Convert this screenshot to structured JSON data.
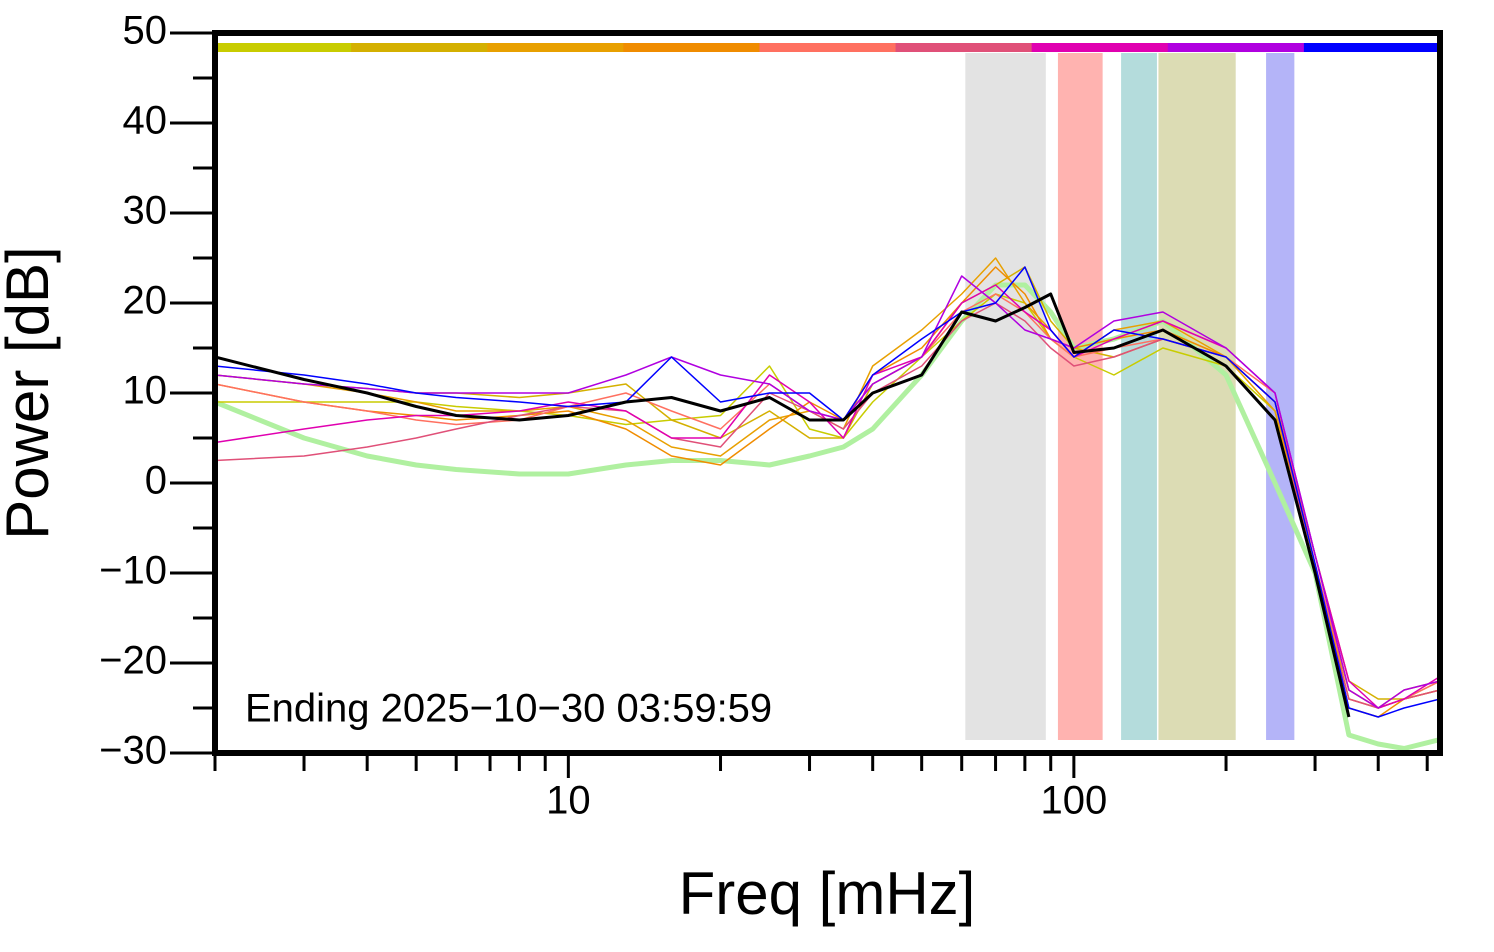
{
  "chart_data": {
    "type": "line",
    "xlabel": "Freq [mHz]",
    "ylabel": "Power [dB]",
    "annotation": "Ending 2025−10−30 03:59:59",
    "xscale": "log",
    "xlim": [
      2,
      530
    ],
    "ylim": [
      -30,
      50
    ],
    "xticks": [
      10,
      100
    ],
    "xminorticks": [
      2,
      3,
      4,
      5,
      6,
      7,
      8,
      9,
      20,
      30,
      40,
      50,
      60,
      70,
      80,
      90,
      200,
      300,
      400,
      500
    ],
    "yticks": [
      {
        "value": -30,
        "label": "−30"
      },
      {
        "value": -20,
        "label": "−20"
      },
      {
        "value": -10,
        "label": "−10"
      },
      0,
      10,
      20,
      30,
      40,
      50
    ],
    "yminorticks": [
      -25,
      -15,
      -5,
      5,
      15,
      25,
      35,
      45
    ],
    "bands": [
      {
        "x0": 61,
        "x1": 88,
        "color": "#e3e3e3"
      },
      {
        "x0": 93,
        "x1": 114,
        "color": "#ffb3b0"
      },
      {
        "x0": 124,
        "x1": 146,
        "color": "#b4dcdc"
      },
      {
        "x0": 147,
        "x1": 209,
        "color": "#dcdcb4"
      },
      {
        "x0": 240,
        "x1": 273,
        "color": "#b4b4f8"
      }
    ],
    "x": [
      2,
      3,
      4,
      5,
      6,
      8,
      10,
      13,
      16,
      20,
      25,
      30,
      35,
      40,
      50,
      60,
      70,
      80,
      90,
      100,
      120,
      150,
      200,
      250,
      300,
      350,
      400,
      450,
      530
    ],
    "series": [
      {
        "color": "#b0f0a0",
        "width": 5,
        "values": [
          9,
          5,
          3,
          2,
          1.5,
          1,
          1,
          2,
          2.5,
          2.5,
          2,
          3,
          4,
          6,
          12,
          18,
          22,
          22,
          19,
          15,
          16,
          18,
          12,
          0,
          -10,
          -28,
          -29,
          -29.5,
          -28.5
        ]
      },
      {
        "color": "#c8cc00",
        "width": 1.5,
        "values": [
          9,
          9,
          9,
          9,
          8.5,
          8,
          7.5,
          6.5,
          7,
          7.5,
          13,
          6,
          5,
          9,
          14,
          18,
          21,
          20,
          16,
          14,
          12,
          15,
          13,
          8,
          -10,
          -23,
          -25,
          -24,
          -23
        ]
      },
      {
        "color": "#d4b000",
        "width": 1.5,
        "values": [
          12,
          11,
          10.5,
          10,
          10,
          9.5,
          10,
          11,
          7,
          5,
          8,
          5,
          5,
          11,
          14,
          20,
          22,
          24,
          18,
          15,
          14,
          16,
          14,
          9,
          -8,
          -22,
          -24,
          -24,
          -22
        ]
      },
      {
        "color": "#e8a000",
        "width": 1.5,
        "values": [
          12,
          11,
          10,
          9,
          8,
          8,
          8.5,
          7,
          4,
          3,
          7,
          8,
          6,
          13,
          17,
          21,
          25,
          20,
          17,
          14,
          17,
          18,
          14,
          8,
          -9,
          -24,
          -25,
          -23,
          -22
        ]
      },
      {
        "color": "#f08c00",
        "width": 1.5,
        "values": [
          11,
          9,
          8,
          7.5,
          7,
          7.5,
          8,
          6,
          3,
          2,
          6,
          9,
          7,
          12,
          15,
          20,
          24,
          21,
          16,
          15,
          16,
          17,
          14,
          9,
          -10,
          -25,
          -26,
          -24,
          -23
        ]
      },
      {
        "color": "#ff7060",
        "width": 1.5,
        "values": [
          11,
          9,
          8,
          7,
          6.5,
          7,
          8.5,
          10,
          8,
          6,
          11,
          8,
          7,
          11,
          14,
          19,
          21,
          19,
          16,
          14,
          15,
          16,
          14,
          10,
          -9,
          -23,
          -25,
          -24,
          -22
        ]
      },
      {
        "color": "#e05078",
        "width": 1.5,
        "values": [
          2.5,
          3,
          4,
          5,
          6,
          7.5,
          8.5,
          8,
          5,
          4,
          10,
          8,
          6,
          10,
          13,
          18,
          20,
          18,
          15,
          13,
          14,
          16,
          14,
          9,
          -10,
          -24,
          -25,
          -24,
          -23
        ]
      },
      {
        "color": "#e000b0",
        "width": 1.5,
        "values": [
          4.5,
          6,
          7,
          7.5,
          7.5,
          8,
          9,
          8,
          5,
          5,
          12,
          9,
          5,
          12,
          14,
          20,
          22,
          19,
          17,
          14,
          16,
          18,
          15,
          10,
          -8,
          -22,
          -25,
          -24,
          -21.5
        ]
      },
      {
        "color": "#b000e0",
        "width": 1.5,
        "values": [
          12,
          11,
          10.5,
          10,
          10,
          10,
          10,
          12,
          14,
          12,
          11,
          8,
          7,
          11,
          14,
          23,
          20,
          17,
          16,
          15,
          18,
          19,
          15,
          10,
          -8,
          -23,
          -25,
          -23,
          -22
        ]
      },
      {
        "color": "#0000ff",
        "width": 1.5,
        "values": [
          13,
          12,
          11,
          10,
          9.5,
          9,
          8.5,
          9,
          14,
          9,
          10,
          10,
          7,
          12,
          16,
          19,
          20,
          24,
          17,
          14,
          17,
          16,
          14,
          9,
          -9,
          -25,
          -26,
          -25,
          -24
        ]
      },
      {
        "color": "#000000",
        "width": 3,
        "values": [
          14,
          11.5,
          10,
          8.5,
          7.5,
          7,
          7.5,
          9,
          9.5,
          8,
          9.5,
          7,
          7,
          10,
          12,
          19,
          18,
          19.5,
          21,
          14.5,
          15,
          17,
          13,
          7,
          -10,
          -26,
          null,
          null,
          null
        ]
      }
    ],
    "colorbar": [
      1,
      2,
      3,
      4,
      5,
      6,
      7,
      8,
      9
    ]
  }
}
